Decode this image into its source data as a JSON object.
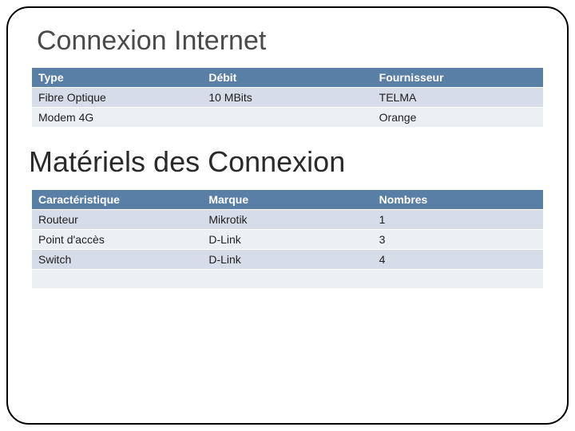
{
  "colors": {
    "header_bg": "#5a7fa6",
    "row_odd_bg": "#d6dde8",
    "row_even_bg": "#ecf0f5",
    "heading_text": "#4a4a4a"
  },
  "section1": {
    "title": "Connexion Internet",
    "table": {
      "columns": [
        "Type",
        "Débit",
        "Fournisseur"
      ],
      "rows": [
        [
          "Fibre Optique",
          "10 MBits",
          "TELMA"
        ],
        [
          "Modem 4G",
          "",
          "Orange"
        ]
      ]
    }
  },
  "section2": {
    "title": "Matériels des Connexion",
    "table": {
      "columns": [
        "Caractéristique",
        "Marque",
        "Nombres"
      ],
      "rows": [
        [
          "Routeur",
          "Mikrotik",
          "1"
        ],
        [
          "Point d'accès",
          "D-Link",
          "3"
        ],
        [
          "Switch",
          "D-Link",
          "4"
        ],
        [
          "",
          "",
          ""
        ]
      ]
    }
  }
}
